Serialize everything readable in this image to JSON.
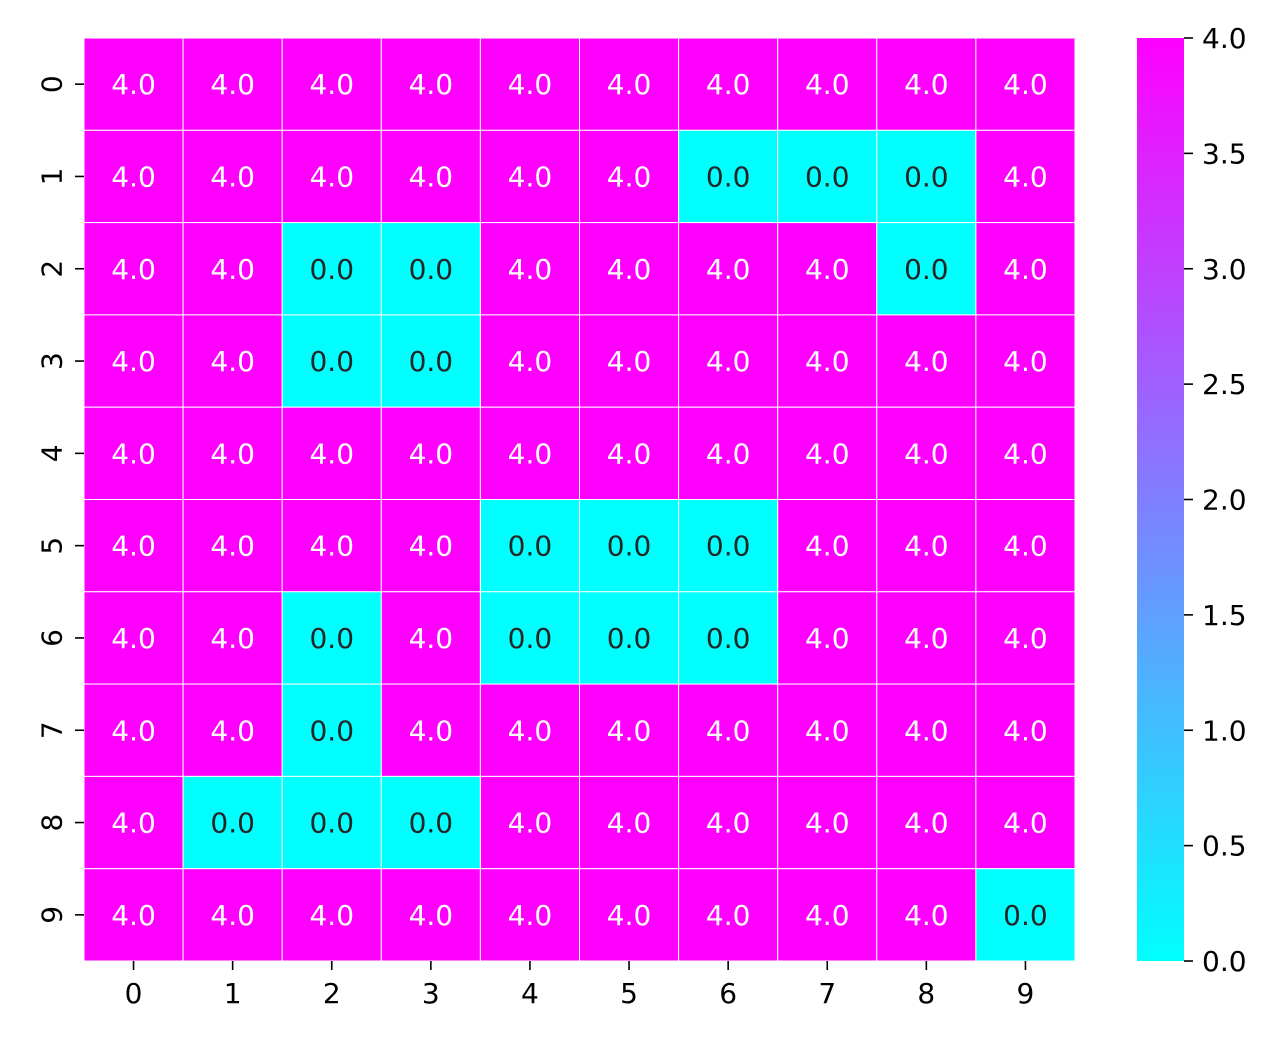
{
  "chart_data": {
    "type": "heatmap",
    "x_categories": [
      "0",
      "1",
      "2",
      "3",
      "4",
      "5",
      "6",
      "7",
      "8",
      "9"
    ],
    "y_categories": [
      "0",
      "1",
      "2",
      "3",
      "4",
      "5",
      "6",
      "7",
      "8",
      "9"
    ],
    "values": [
      [
        4,
        4,
        4,
        4,
        4,
        4,
        4,
        4,
        4,
        4
      ],
      [
        4,
        4,
        4,
        4,
        4,
        4,
        0,
        0,
        0,
        4
      ],
      [
        4,
        4,
        0,
        0,
        4,
        4,
        4,
        4,
        0,
        4
      ],
      [
        4,
        4,
        0,
        0,
        4,
        4,
        4,
        4,
        4,
        4
      ],
      [
        4,
        4,
        4,
        4,
        4,
        4,
        4,
        4,
        4,
        4
      ],
      [
        4,
        4,
        4,
        4,
        0,
        0,
        0,
        4,
        4,
        4
      ],
      [
        4,
        4,
        0,
        4,
        0,
        0,
        0,
        4,
        4,
        4
      ],
      [
        4,
        4,
        0,
        4,
        4,
        4,
        4,
        4,
        4,
        4
      ],
      [
        4,
        0,
        0,
        0,
        4,
        4,
        4,
        4,
        4,
        4
      ],
      [
        4,
        4,
        4,
        4,
        4,
        4,
        4,
        4,
        4,
        0
      ]
    ],
    "value_format_decimals": 1,
    "colormap": "cool",
    "color_low": "#00ffff",
    "color_high": "#ff00ff",
    "vmin": 0,
    "vmax": 4,
    "colorbar_ticks": [
      "0.0",
      "0.5",
      "1.0",
      "1.5",
      "2.0",
      "2.5",
      "3.0",
      "3.5",
      "4.0"
    ],
    "colorbar_tick_values": [
      0,
      0.5,
      1,
      1.5,
      2,
      2.5,
      3,
      3.5,
      4
    ],
    "annotation_color_on_high": "#ffffff",
    "annotation_color_on_low": "#262626",
    "cell_separator_color": "#ffffff",
    "title": "",
    "xlabel": "",
    "ylabel": "",
    "grid": false,
    "legend": "colorbar-right"
  }
}
